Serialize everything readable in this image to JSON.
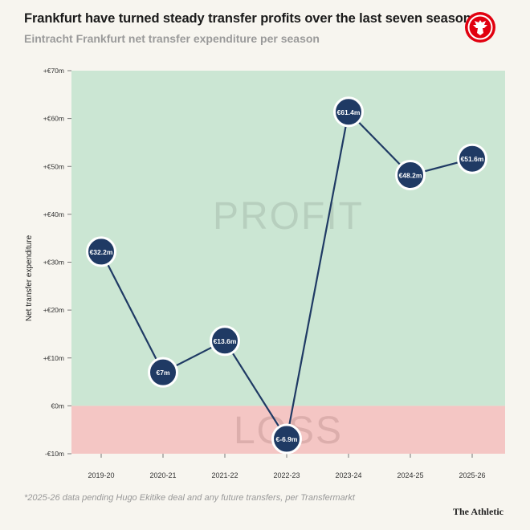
{
  "header": {
    "title": "Frankfurt have turned steady transfer profits over the last seven seasons",
    "subtitle": "Eintracht Frankfurt net transfer expenditure per season"
  },
  "logo": {
    "icon": "eintracht-frankfurt-eagle-crest",
    "color": "#e1000f"
  },
  "footer": {
    "note": "*2025-26 data pending Hugo Ekitike deal and any future transfers, per Transfermarkt",
    "brand": "The Athletic"
  },
  "chart_data": {
    "type": "line",
    "title": "Frankfurt have turned steady transfer profits over the last seven seasons",
    "subtitle": "Eintracht Frankfurt net transfer expenditure per season",
    "ylabel": "Net transfer expenditure",
    "xlabel": "",
    "categories": [
      "2019-20",
      "2020-21",
      "2021-22",
      "2022-23",
      "2023-24",
      "2024-25",
      "2025-26"
    ],
    "values": [
      32.2,
      7,
      13.6,
      -6.9,
      61.4,
      48.2,
      51.6
    ],
    "point_labels": [
      "€32.2m",
      "€7m",
      "€13.6m",
      "€-6.9m",
      "€61.4m",
      "€48.2m",
      "€51.6m"
    ],
    "ylim": [
      -10,
      70
    ],
    "yticks": [
      -10,
      0,
      10,
      20,
      30,
      40,
      50,
      60,
      70
    ],
    "ytick_labels": [
      "-€10m",
      "€0m",
      "+€10m",
      "+€20m",
      "+€30m",
      "+€40m",
      "+€50m",
      "+€60m",
      "+€70m"
    ],
    "regions": [
      {
        "label": "PROFIT",
        "from": 0,
        "to": 70,
        "color": "#cbe6d3",
        "label_color": "#b7cfbe"
      },
      {
        "label": "LOSS",
        "from": -10,
        "to": 0,
        "color": "#f4c6c4",
        "label_color": "#dcaeac"
      }
    ],
    "colors": {
      "line": "#1f3a64",
      "marker": "#1f3a64",
      "marker_border": "#ffffff"
    },
    "grid": false,
    "legend": "none"
  }
}
